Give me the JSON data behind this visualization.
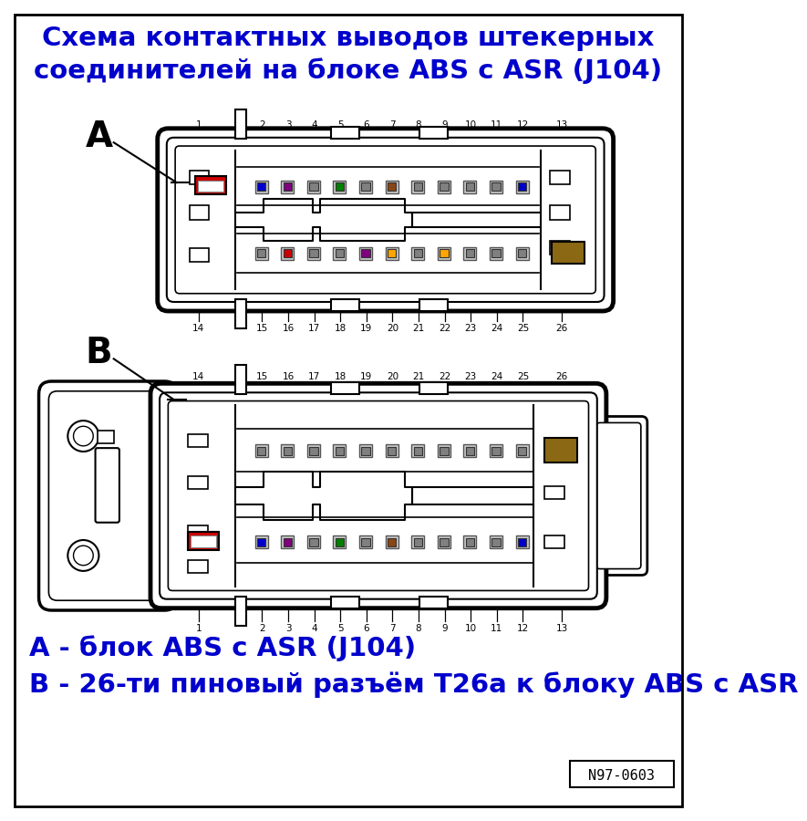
{
  "title_line1": "Схема контактных выводов штекерных",
  "title_line2": "соединителей на блоке ABS с ASR (J104)",
  "title_color": "#0000CC",
  "bg_color": "#FFFFFF",
  "label_A": "A",
  "label_B": "B",
  "legend_line1": "А - блок ABS с ASR (J104)",
  "legend_line2": "В - 26-ти пиновый разъём Т26а к блоку ABS с ASR",
  "legend_color": "#0000CC",
  "ref_label": "N97-0603",
  "top_pins_top": [
    "1",
    "2",
    "3",
    "4",
    "5",
    "6",
    "7",
    "8",
    "9",
    "10",
    "11",
    "12",
    "13"
  ],
  "top_pins_bottom": [
    "14",
    "15",
    "16",
    "17",
    "18",
    "19",
    "20",
    "21",
    "22",
    "23",
    "24",
    "25",
    "26"
  ],
  "bot_pins_top": [
    "14",
    "15",
    "16",
    "17",
    "18",
    "19",
    "20",
    "21",
    "22",
    "23",
    "24",
    "25",
    "26"
  ],
  "bot_pins_bottom": [
    "1",
    "2",
    "3",
    "4",
    "5",
    "6",
    "7",
    "8",
    "9",
    "10",
    "11",
    "12",
    "13"
  ],
  "conn_a_top_colors": [
    "#0000CC",
    "#800080",
    "#808080",
    "#008000",
    "#808080",
    "#8B4513",
    "#808080",
    "#808080",
    "#808080",
    "#808080",
    "#0000CC"
  ],
  "conn_a_bot_colors": [
    "#808080",
    "#CC0000",
    "#808080",
    "#808080",
    "#800080",
    "#FFA500",
    "#808080",
    "#FFA500",
    "#808080",
    "#808080",
    "#808080"
  ],
  "conn_b_top_colors": [
    "#808080",
    "#808080",
    "#808080",
    "#808080",
    "#808080",
    "#808080",
    "#808080",
    "#808080",
    "#808080",
    "#808080",
    "#808080"
  ],
  "conn_b_bot_colors": [
    "#0000CC",
    "#800080",
    "#808080",
    "#008000",
    "#808080",
    "#8B4513",
    "#808080",
    "#808080",
    "#808080",
    "#808080",
    "#0000CC"
  ]
}
